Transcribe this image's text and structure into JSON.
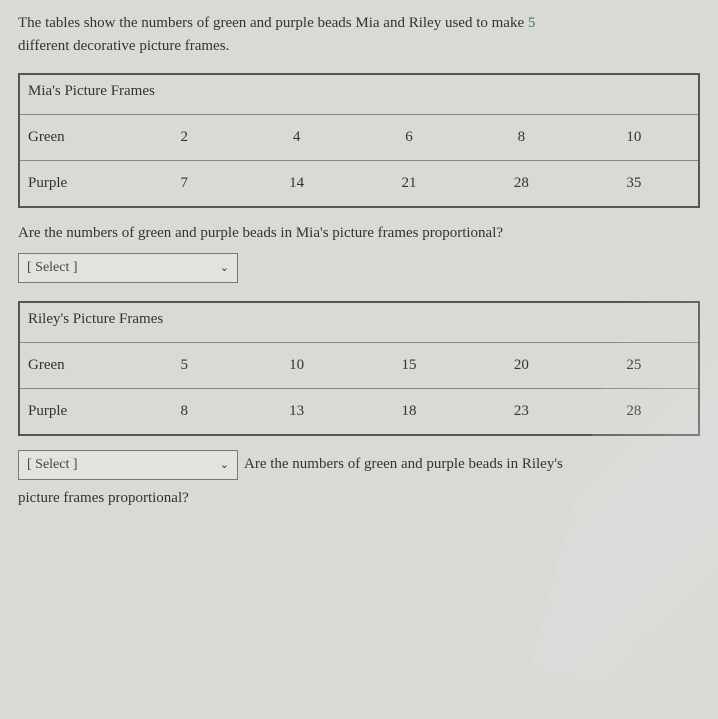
{
  "intro": {
    "text_part1": "The tables show the numbers of green and purple beads Mia and Riley used to make ",
    "highlight_num": "5",
    "text_part2": "different decorative picture frames."
  },
  "table1": {
    "title": "Mia's Picture Frames",
    "row1_label": "Green",
    "row1_values": [
      "2",
      "4",
      "6",
      "8",
      "10"
    ],
    "row2_label": "Purple",
    "row2_values": [
      "7",
      "14",
      "21",
      "28",
      "35"
    ]
  },
  "question1": {
    "text": "Are the numbers of green and purple beads in Mia's picture frames proportional?",
    "select_placeholder": "[ Select ]"
  },
  "table2": {
    "title": "Riley's Picture Frames",
    "row1_label": "Green",
    "row1_values": [
      "5",
      "10",
      "15",
      "20",
      "25"
    ],
    "row2_label": "Purple",
    "row2_values": [
      "8",
      "13",
      "18",
      "23",
      "28"
    ]
  },
  "question2": {
    "select_placeholder": "[ Select ]",
    "text_inline": "Are the numbers of green and purple beads in Riley's",
    "text_below": "picture frames proportional?"
  },
  "colors": {
    "background": "#d9dad4",
    "text": "#333333",
    "border": "#555555",
    "highlight": "#3b7a7a"
  }
}
